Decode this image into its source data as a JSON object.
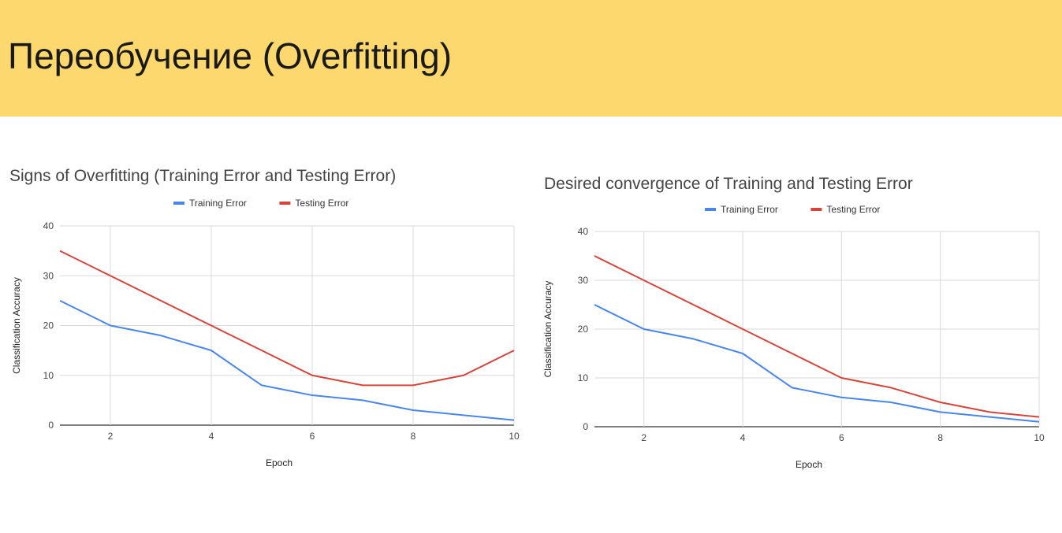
{
  "header": {
    "title": "Переобучение (Overfitting)"
  },
  "colors": {
    "header_bg": "#fdd86e",
    "training": "#4a86e8",
    "testing": "#d5453c",
    "grid": "#d9d9d9"
  },
  "chart_data": [
    {
      "type": "line",
      "title": "Signs of Overfitting (Training Error and Testing Error)",
      "xlabel": "Epoch",
      "ylabel": "Classification Accuracy",
      "x": [
        1,
        2,
        3,
        4,
        5,
        6,
        7,
        8,
        9,
        10
      ],
      "xticks": [
        2,
        4,
        6,
        8,
        10
      ],
      "yticks": [
        0,
        10,
        20,
        30,
        40
      ],
      "xlim": [
        1,
        10
      ],
      "ylim": [
        0,
        40
      ],
      "legend_position": "top-center",
      "grid": true,
      "series": [
        {
          "name": "Training Error",
          "values": [
            25,
            20,
            18,
            15,
            8,
            6,
            5,
            3,
            2,
            1
          ]
        },
        {
          "name": "Testing Error",
          "values": [
            35,
            30,
            25,
            20,
            15,
            10,
            8,
            8,
            10,
            15
          ]
        }
      ]
    },
    {
      "type": "line",
      "title": "Desired convergence of Training and Testing Error",
      "xlabel": "Epoch",
      "ylabel": "Classification Accuracy",
      "x": [
        1,
        2,
        3,
        4,
        5,
        6,
        7,
        8,
        9,
        10
      ],
      "xticks": [
        2,
        4,
        6,
        8,
        10
      ],
      "yticks": [
        0,
        10,
        20,
        30,
        40
      ],
      "xlim": [
        1,
        10
      ],
      "ylim": [
        0,
        40
      ],
      "legend_position": "top-center",
      "grid": true,
      "series": [
        {
          "name": "Training Error",
          "values": [
            25,
            20,
            18,
            15,
            8,
            6,
            5,
            3,
            2,
            1
          ]
        },
        {
          "name": "Testing Error",
          "values": [
            35,
            30,
            25,
            20,
            15,
            10,
            8,
            5,
            3,
            2
          ]
        }
      ]
    }
  ]
}
